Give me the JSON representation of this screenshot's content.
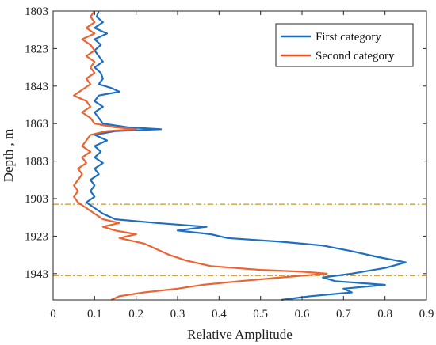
{
  "chart_data": {
    "type": "line",
    "title": "",
    "xlabel": "Relative Amplitude",
    "ylabel": "Depth , m",
    "xlim": [
      0,
      0.9
    ],
    "ylim": [
      1803,
      1957
    ],
    "y_reversed": true,
    "x_ticks": [
      "0",
      "0.1",
      "0.2",
      "0.3",
      "0.4",
      "0.5",
      "0.6",
      "0.7",
      "0.8",
      "0.9"
    ],
    "y_ticks": [
      "1803",
      "1823",
      "1843",
      "1863",
      "1883",
      "1903",
      "1923",
      "1943"
    ],
    "grid": false,
    "legend_position": "top-right",
    "series": [
      {
        "name": "First category",
        "color": "#1f6fc0",
        "points": [
          [
            0.11,
            1803
          ],
          [
            0.105,
            1806
          ],
          [
            0.12,
            1809
          ],
          [
            0.1,
            1812
          ],
          [
            0.13,
            1815
          ],
          [
            0.1,
            1818
          ],
          [
            0.115,
            1821
          ],
          [
            0.1,
            1824
          ],
          [
            0.11,
            1827
          ],
          [
            0.12,
            1830
          ],
          [
            0.1,
            1833
          ],
          [
            0.115,
            1836
          ],
          [
            0.12,
            1839
          ],
          [
            0.11,
            1842
          ],
          [
            0.14,
            1844
          ],
          [
            0.16,
            1846
          ],
          [
            0.11,
            1848
          ],
          [
            0.1,
            1851
          ],
          [
            0.12,
            1854
          ],
          [
            0.1,
            1857
          ],
          [
            0.11,
            1860
          ],
          [
            0.12,
            1863
          ],
          [
            0.18,
            1865
          ],
          [
            0.26,
            1866
          ],
          [
            0.15,
            1867
          ],
          [
            0.1,
            1869
          ],
          [
            0.13,
            1872
          ],
          [
            0.1,
            1875
          ],
          [
            0.115,
            1878
          ],
          [
            0.1,
            1881
          ],
          [
            0.12,
            1884
          ],
          [
            0.1,
            1887
          ],
          [
            0.11,
            1890
          ],
          [
            0.09,
            1893
          ],
          [
            0.1,
            1896
          ],
          [
            0.09,
            1899
          ],
          [
            0.1,
            1902
          ],
          [
            0.08,
            1905
          ],
          [
            0.1,
            1908
          ],
          [
            0.12,
            1911
          ],
          [
            0.15,
            1914
          ],
          [
            0.25,
            1916
          ],
          [
            0.37,
            1918
          ],
          [
            0.3,
            1920
          ],
          [
            0.38,
            1922
          ],
          [
            0.42,
            1924
          ],
          [
            0.55,
            1926
          ],
          [
            0.65,
            1928
          ],
          [
            0.72,
            1931
          ],
          [
            0.78,
            1934
          ],
          [
            0.85,
            1937
          ],
          [
            0.8,
            1940
          ],
          [
            0.72,
            1943
          ],
          [
            0.65,
            1945
          ],
          [
            0.68,
            1947
          ],
          [
            0.8,
            1949
          ],
          [
            0.7,
            1951
          ],
          [
            0.72,
            1953
          ],
          [
            0.62,
            1955
          ],
          [
            0.55,
            1957
          ]
        ]
      },
      {
        "name": "Second category",
        "color": "#e8531e",
        "points": [
          [
            0.1,
            1803
          ],
          [
            0.09,
            1806
          ],
          [
            0.1,
            1809
          ],
          [
            0.08,
            1812
          ],
          [
            0.1,
            1815
          ],
          [
            0.07,
            1818
          ],
          [
            0.09,
            1821
          ],
          [
            0.1,
            1824
          ],
          [
            0.08,
            1827
          ],
          [
            0.1,
            1830
          ],
          [
            0.09,
            1833
          ],
          [
            0.1,
            1836
          ],
          [
            0.08,
            1839
          ],
          [
            0.09,
            1842
          ],
          [
            0.07,
            1845
          ],
          [
            0.05,
            1848
          ],
          [
            0.08,
            1851
          ],
          [
            0.09,
            1854
          ],
          [
            0.07,
            1857
          ],
          [
            0.09,
            1860
          ],
          [
            0.1,
            1863
          ],
          [
            0.15,
            1865
          ],
          [
            0.2,
            1866
          ],
          [
            0.13,
            1867
          ],
          [
            0.09,
            1869
          ],
          [
            0.08,
            1872
          ],
          [
            0.07,
            1875
          ],
          [
            0.09,
            1878
          ],
          [
            0.07,
            1881
          ],
          [
            0.08,
            1884
          ],
          [
            0.06,
            1887
          ],
          [
            0.07,
            1890
          ],
          [
            0.06,
            1893
          ],
          [
            0.05,
            1896
          ],
          [
            0.06,
            1899
          ],
          [
            0.05,
            1902
          ],
          [
            0.06,
            1905
          ],
          [
            0.08,
            1908
          ],
          [
            0.1,
            1911
          ],
          [
            0.12,
            1914
          ],
          [
            0.16,
            1916
          ],
          [
            0.12,
            1918
          ],
          [
            0.15,
            1920
          ],
          [
            0.2,
            1922
          ],
          [
            0.16,
            1924
          ],
          [
            0.22,
            1927
          ],
          [
            0.25,
            1930
          ],
          [
            0.28,
            1933
          ],
          [
            0.32,
            1936
          ],
          [
            0.38,
            1939
          ],
          [
            0.5,
            1941
          ],
          [
            0.6,
            1942
          ],
          [
            0.66,
            1943
          ],
          [
            0.55,
            1945
          ],
          [
            0.45,
            1947
          ],
          [
            0.36,
            1949
          ],
          [
            0.3,
            1951
          ],
          [
            0.22,
            1953
          ],
          [
            0.16,
            1955
          ],
          [
            0.14,
            1957
          ]
        ]
      }
    ],
    "reference_lines": [
      {
        "type": "horizontal",
        "y": 1906,
        "color": "#c8962a",
        "style": "dash-dot"
      },
      {
        "type": "horizontal",
        "y": 1944,
        "color": "#c8962a",
        "style": "dash-dot"
      }
    ]
  }
}
